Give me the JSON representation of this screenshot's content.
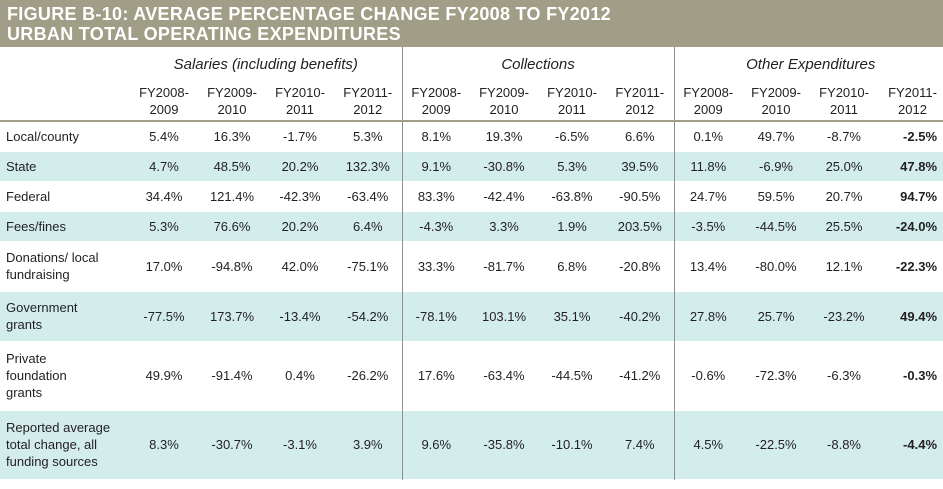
{
  "title": {
    "line1": "FIGURE B-10: AVERAGE PERCENTAGE CHANGE FY2008 TO FY2012",
    "line2": "URBAN TOTAL OPERATING EXPENDITURES"
  },
  "groups": [
    "Salaries (including benefits)",
    "Collections",
    "Other Expenditures"
  ],
  "years": [
    [
      "FY2008-",
      "2009"
    ],
    [
      "FY2009-",
      "2010"
    ],
    [
      "FY2010-",
      "2011"
    ],
    [
      "FY2011-",
      "2012"
    ]
  ],
  "rows": [
    {
      "label": "Local/county",
      "values": [
        "5.4%",
        "16.3%",
        "-1.7%",
        "5.3%",
        "8.1%",
        "19.3%",
        "-6.5%",
        "6.6%",
        "0.1%",
        "49.7%",
        "-8.7%",
        "-2.5%"
      ]
    },
    {
      "label": "State",
      "values": [
        "4.7%",
        "48.5%",
        "20.2%",
        "132.3%",
        "9.1%",
        "-30.8%",
        "5.3%",
        "39.5%",
        "11.8%",
        "-6.9%",
        "25.0%",
        "47.8%"
      ]
    },
    {
      "label": "Federal",
      "values": [
        "34.4%",
        "121.4%",
        "-42.3%",
        "-63.4%",
        "83.3%",
        "-42.4%",
        "-63.8%",
        "-90.5%",
        "24.7%",
        "59.5%",
        "20.7%",
        "94.7%"
      ]
    },
    {
      "label": "Fees/fines",
      "values": [
        "5.3%",
        "76.6%",
        "20.2%",
        "6.4%",
        "-4.3%",
        "3.3%",
        "1.9%",
        "203.5%",
        "-3.5%",
        "-44.5%",
        "25.5%",
        "-24.0%"
      ]
    },
    {
      "label": [
        "Donations/ local",
        "fundraising"
      ],
      "values": [
        "17.0%",
        "-94.8%",
        "42.0%",
        "-75.1%",
        "33.3%",
        "-81.7%",
        "6.8%",
        "-20.8%",
        "13.4%",
        "-80.0%",
        "12.1%",
        "-22.3%"
      ]
    },
    {
      "label": [
        "Government",
        "grants"
      ],
      "values": [
        "-77.5%",
        "173.7%",
        "-13.4%",
        "-54.2%",
        "-78.1%",
        "103.1%",
        "35.1%",
        "-40.2%",
        "27.8%",
        "25.7%",
        "-23.2%",
        "49.4%"
      ]
    },
    {
      "label": [
        "Private",
        "foundation",
        "grants"
      ],
      "values": [
        "49.9%",
        "-91.4%",
        "0.4%",
        "-26.2%",
        "17.6%",
        "-63.4%",
        "-44.5%",
        "-41.2%",
        "-0.6%",
        "-72.3%",
        "-6.3%",
        "-0.3%"
      ]
    },
    {
      "label": [
        "Reported average",
        "total change, all",
        "funding sources"
      ],
      "values": [
        "8.3%",
        "-30.7%",
        "-3.1%",
        "3.9%",
        "9.6%",
        "-35.8%",
        "-10.1%",
        "7.4%",
        "4.5%",
        "-22.5%",
        "-8.8%",
        "-4.4%"
      ]
    }
  ]
}
